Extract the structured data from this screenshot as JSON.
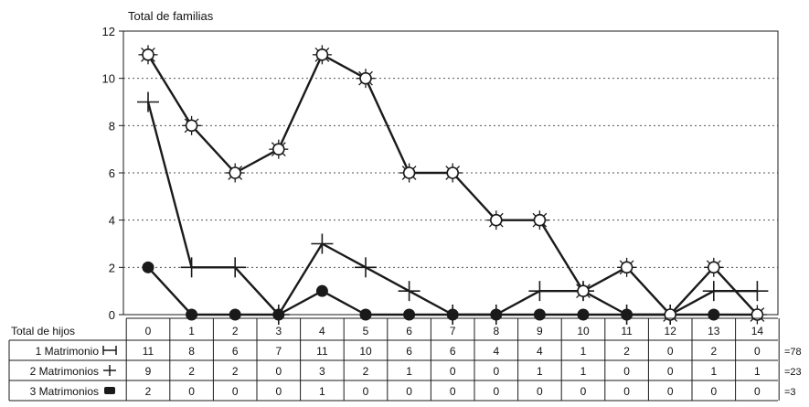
{
  "chart_data": {
    "type": "line",
    "title": "Total de familias",
    "xlabel": "Total de hijos",
    "ylabel": "",
    "x": [
      0,
      1,
      2,
      3,
      4,
      5,
      6,
      7,
      8,
      9,
      10,
      11,
      12,
      13,
      14
    ],
    "x_tick_labels": [
      "0",
      "1",
      "2",
      "3",
      "4",
      "5",
      "6",
      "7",
      "8",
      "9",
      "10",
      "11",
      "12",
      "13",
      "14"
    ],
    "y_ticks": [
      0,
      2,
      4,
      6,
      8,
      10,
      12
    ],
    "y_tick_labels": [
      "0",
      "2",
      "4",
      "6",
      "8",
      "10",
      "12"
    ],
    "ylim": [
      0,
      12
    ],
    "grid": "horizontal dotted",
    "series": [
      {
        "name": "1 Matrimonio",
        "marker": "sun",
        "total": "=78",
        "values": [
          11,
          8,
          6,
          7,
          11,
          10,
          6,
          6,
          4,
          4,
          1,
          2,
          0,
          2,
          0
        ]
      },
      {
        "name": "2 Matrimonios",
        "marker": "plus",
        "total": "=23",
        "values": [
          9,
          2,
          2,
          0,
          3,
          2,
          1,
          0,
          0,
          1,
          1,
          0,
          0,
          1,
          1
        ]
      },
      {
        "name": "3 Matrimonios",
        "marker": "dot",
        "total": "=3",
        "values": [
          2,
          0,
          0,
          0,
          1,
          0,
          0,
          0,
          0,
          0,
          0,
          0,
          0,
          0,
          0
        ]
      }
    ],
    "colors": {
      "line": "#1a1a1a",
      "grid": "#555555",
      "marker_fill": "#ffffff"
    }
  }
}
